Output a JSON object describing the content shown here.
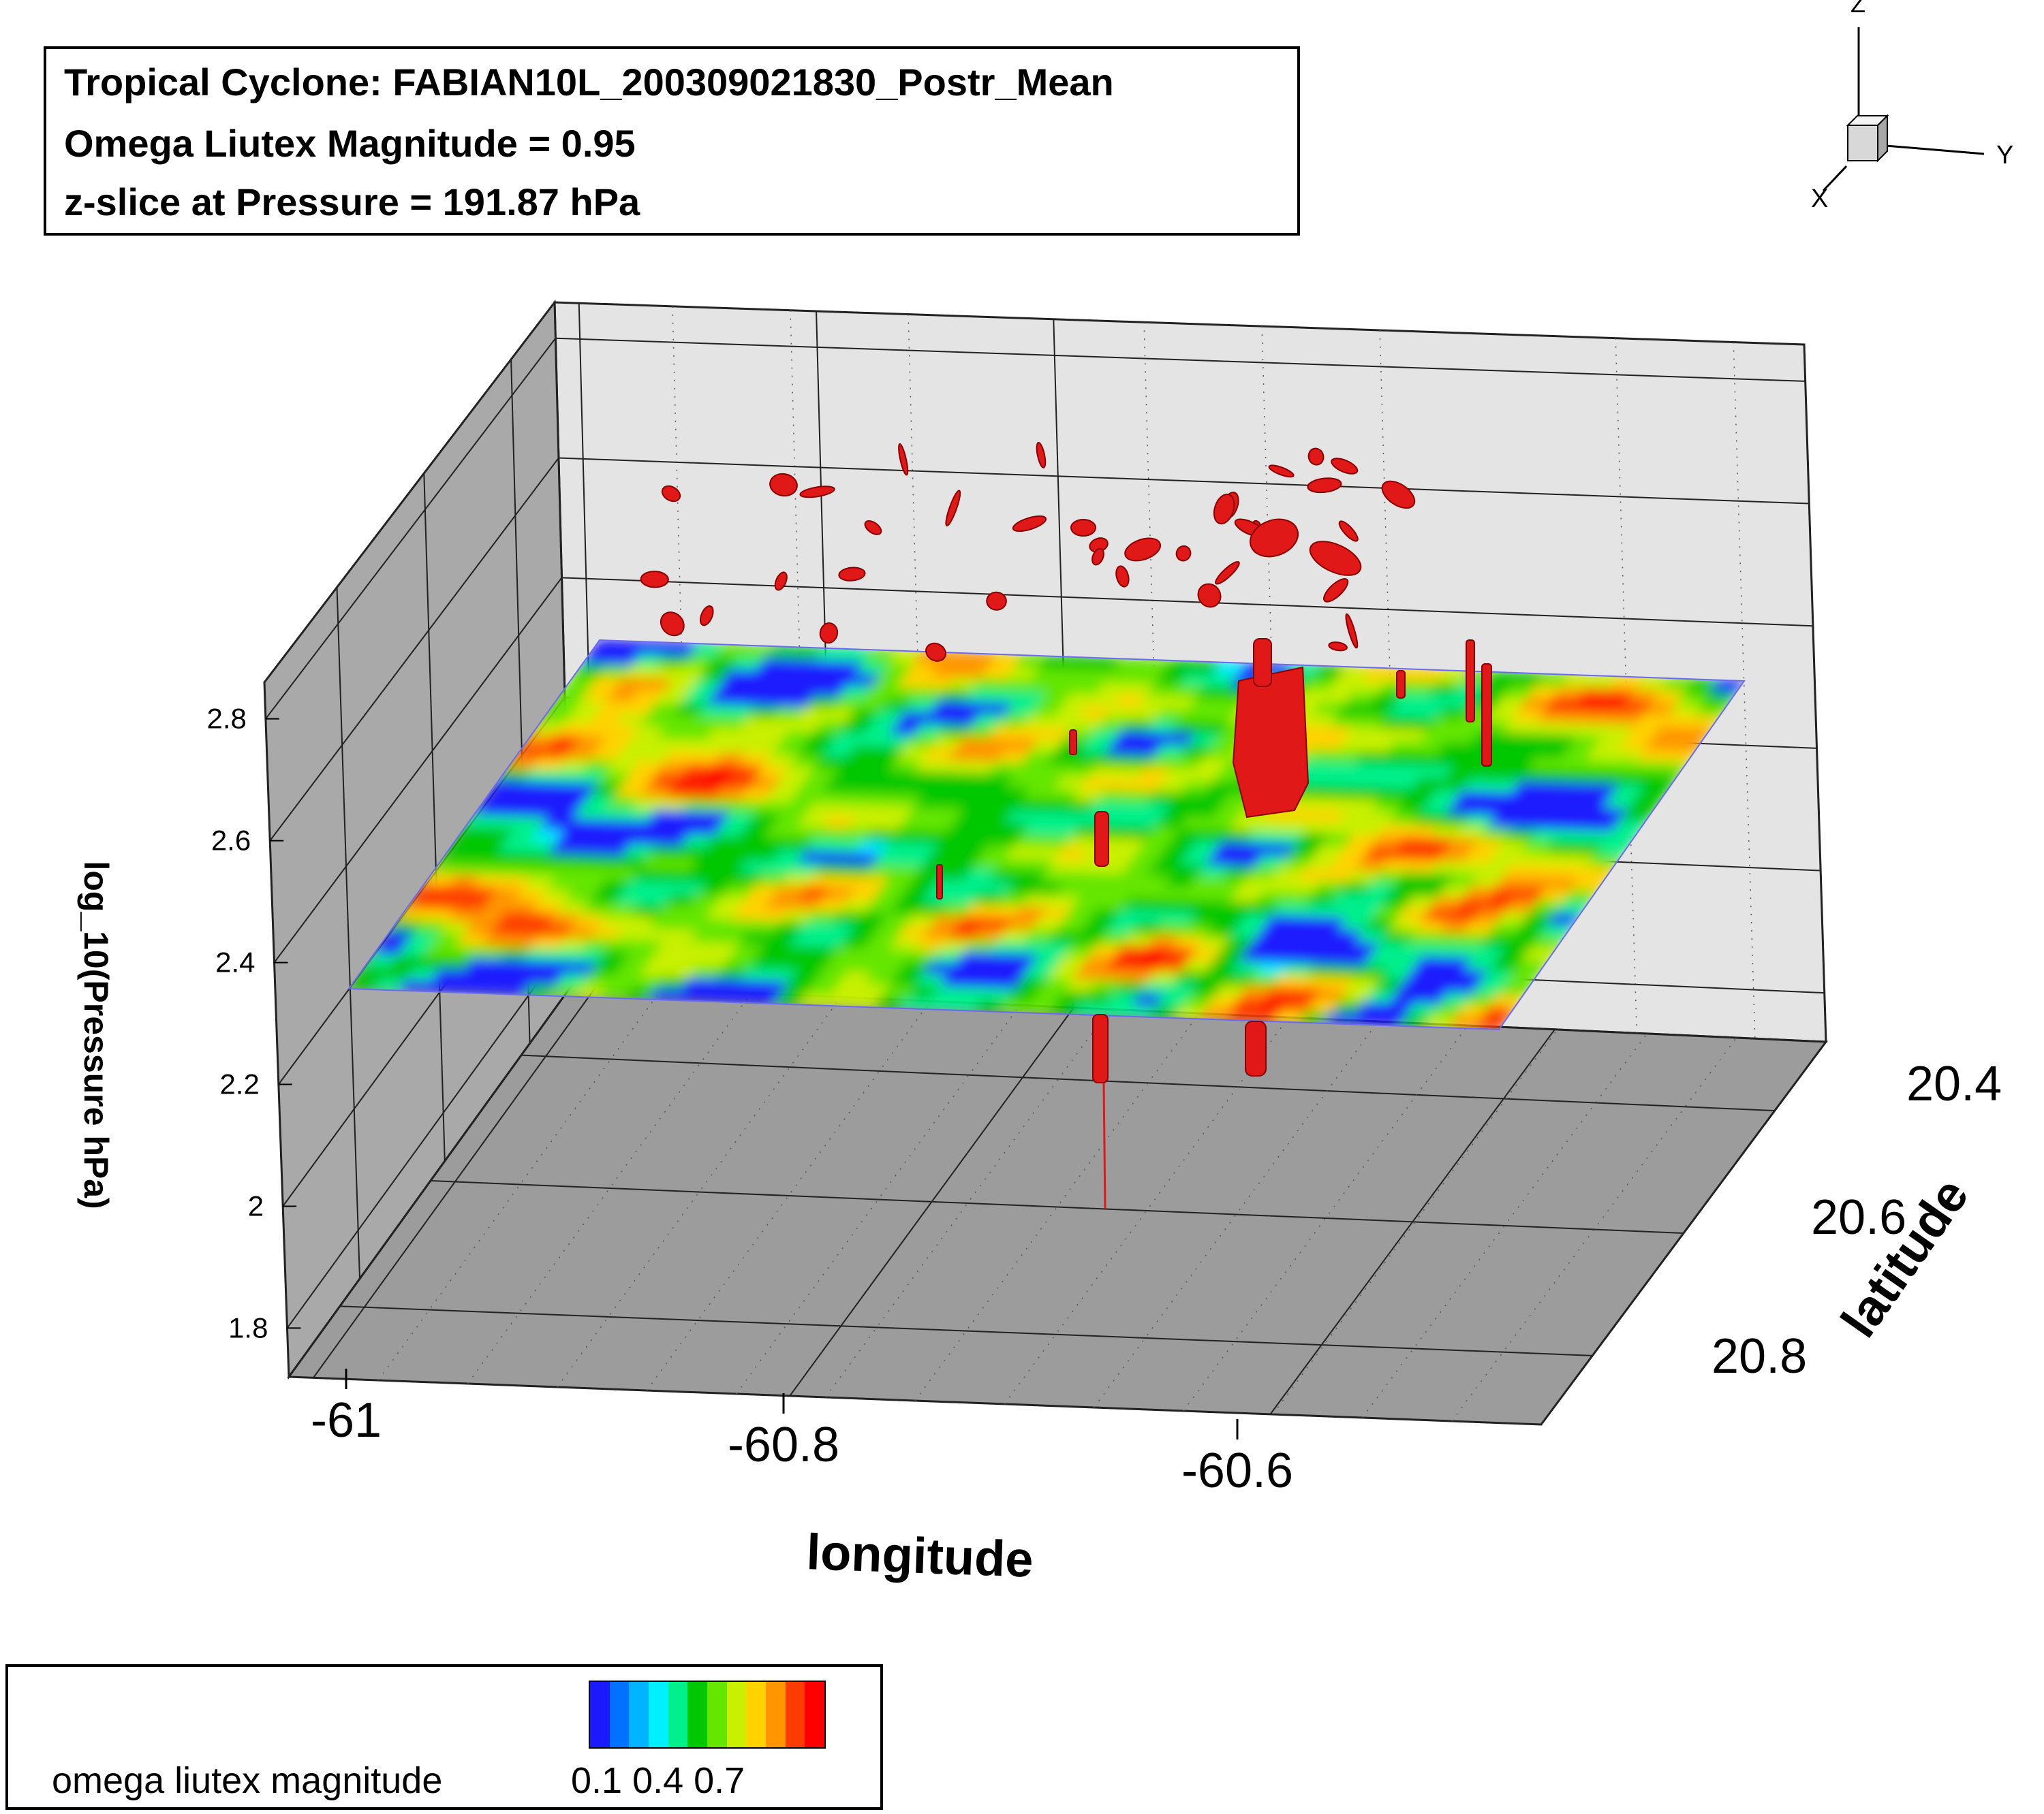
{
  "header": {
    "title": "Tropical Cyclone: FABIAN10L_200309021830_Postr_Mean",
    "magnitude": "Omega Liutex Magnitude = 0.95",
    "slice": "z-slice at Pressure = 191.87 hPa"
  },
  "axes_triad": {
    "z": "Z",
    "y": "Y",
    "x": "X"
  },
  "legend": {
    "label": "omega liutex magnitude",
    "ticks": "0.1 0.4 0.7",
    "colors": [
      "#1a1aff",
      "#0072ff",
      "#00b4ff",
      "#00f0ff",
      "#00f08c",
      "#00c800",
      "#64e600",
      "#c8f000",
      "#ffd200",
      "#ff9600",
      "#ff3c00",
      "#ff0000"
    ]
  },
  "chart_data": {
    "type": "heatmap",
    "title": "Tropical Cyclone: FABIAN10L_200309021830_Postr_Mean",
    "xlabel": "longitude",
    "ylabel": "latitude",
    "zlabel": "log_10(Pressure hPa)",
    "x_ticks": [
      "-61",
      "-60.8",
      "-60.6"
    ],
    "y_ticks": [
      "20.4",
      "20.6",
      "20.8"
    ],
    "z_ticks": [
      "2.8",
      "2.6",
      "2.4",
      "2.2",
      "2",
      "1.8"
    ],
    "x_range": [
      -61.02,
      -60.45
    ],
    "y_range": [
      20.35,
      20.95
    ],
    "z_range": [
      1.72,
      2.86
    ],
    "slice_pressure_hPa": 191.87,
    "slice_log10_pressure": 2.283,
    "isosurface_value": 0.95,
    "colormap_range": [
      0.0,
      0.95
    ],
    "grid": true,
    "colormap": [
      "#1a1aff",
      "#0072ff",
      "#00b4ff",
      "#00f0ff",
      "#00f08c",
      "#00c800",
      "#64e600",
      "#c8f000",
      "#ffd200",
      "#ff9600",
      "#ff3c00",
      "#ff0000"
    ],
    "slice_surface": {
      "rows": 30,
      "cols": 46,
      "seed": 7
    },
    "isosurface_color": "#e01818"
  }
}
